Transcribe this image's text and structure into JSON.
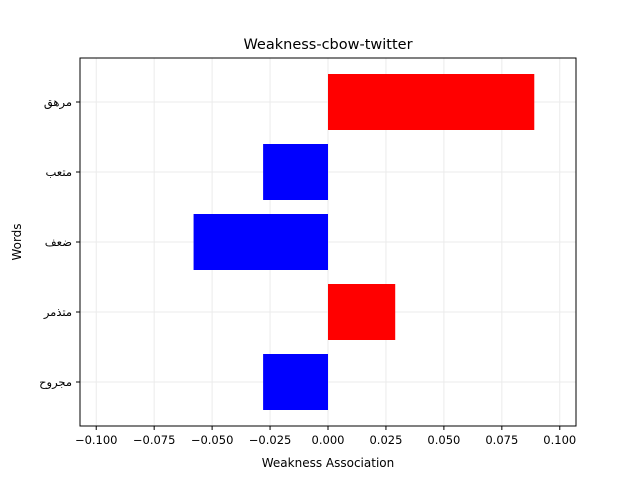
{
  "chart_data": {
    "type": "bar",
    "orientation": "horizontal",
    "title": "Weakness-cbow-twitter",
    "xlabel": "Weakness Association",
    "ylabel": "Words",
    "categories": [
      "مرهق",
      "متعب",
      "ضعف",
      "متذمر",
      "مجروح"
    ],
    "values": [
      0.089,
      -0.028,
      -0.058,
      0.029,
      -0.028
    ],
    "xlim": [
      -0.107,
      0.107
    ],
    "xticks": [
      -0.1,
      -0.075,
      -0.05,
      -0.025,
      0.0,
      0.025,
      0.05,
      0.075,
      0.1
    ],
    "xtick_labels": [
      "−0.100",
      "−0.075",
      "−0.050",
      "−0.025",
      "0.000",
      "0.025",
      "0.050",
      "0.075",
      "0.100"
    ],
    "grid": true,
    "colors": {
      "positive": "#ff0000",
      "negative": "#0000ff",
      "grid": "#ebebeb",
      "axis": "#000000"
    }
  }
}
